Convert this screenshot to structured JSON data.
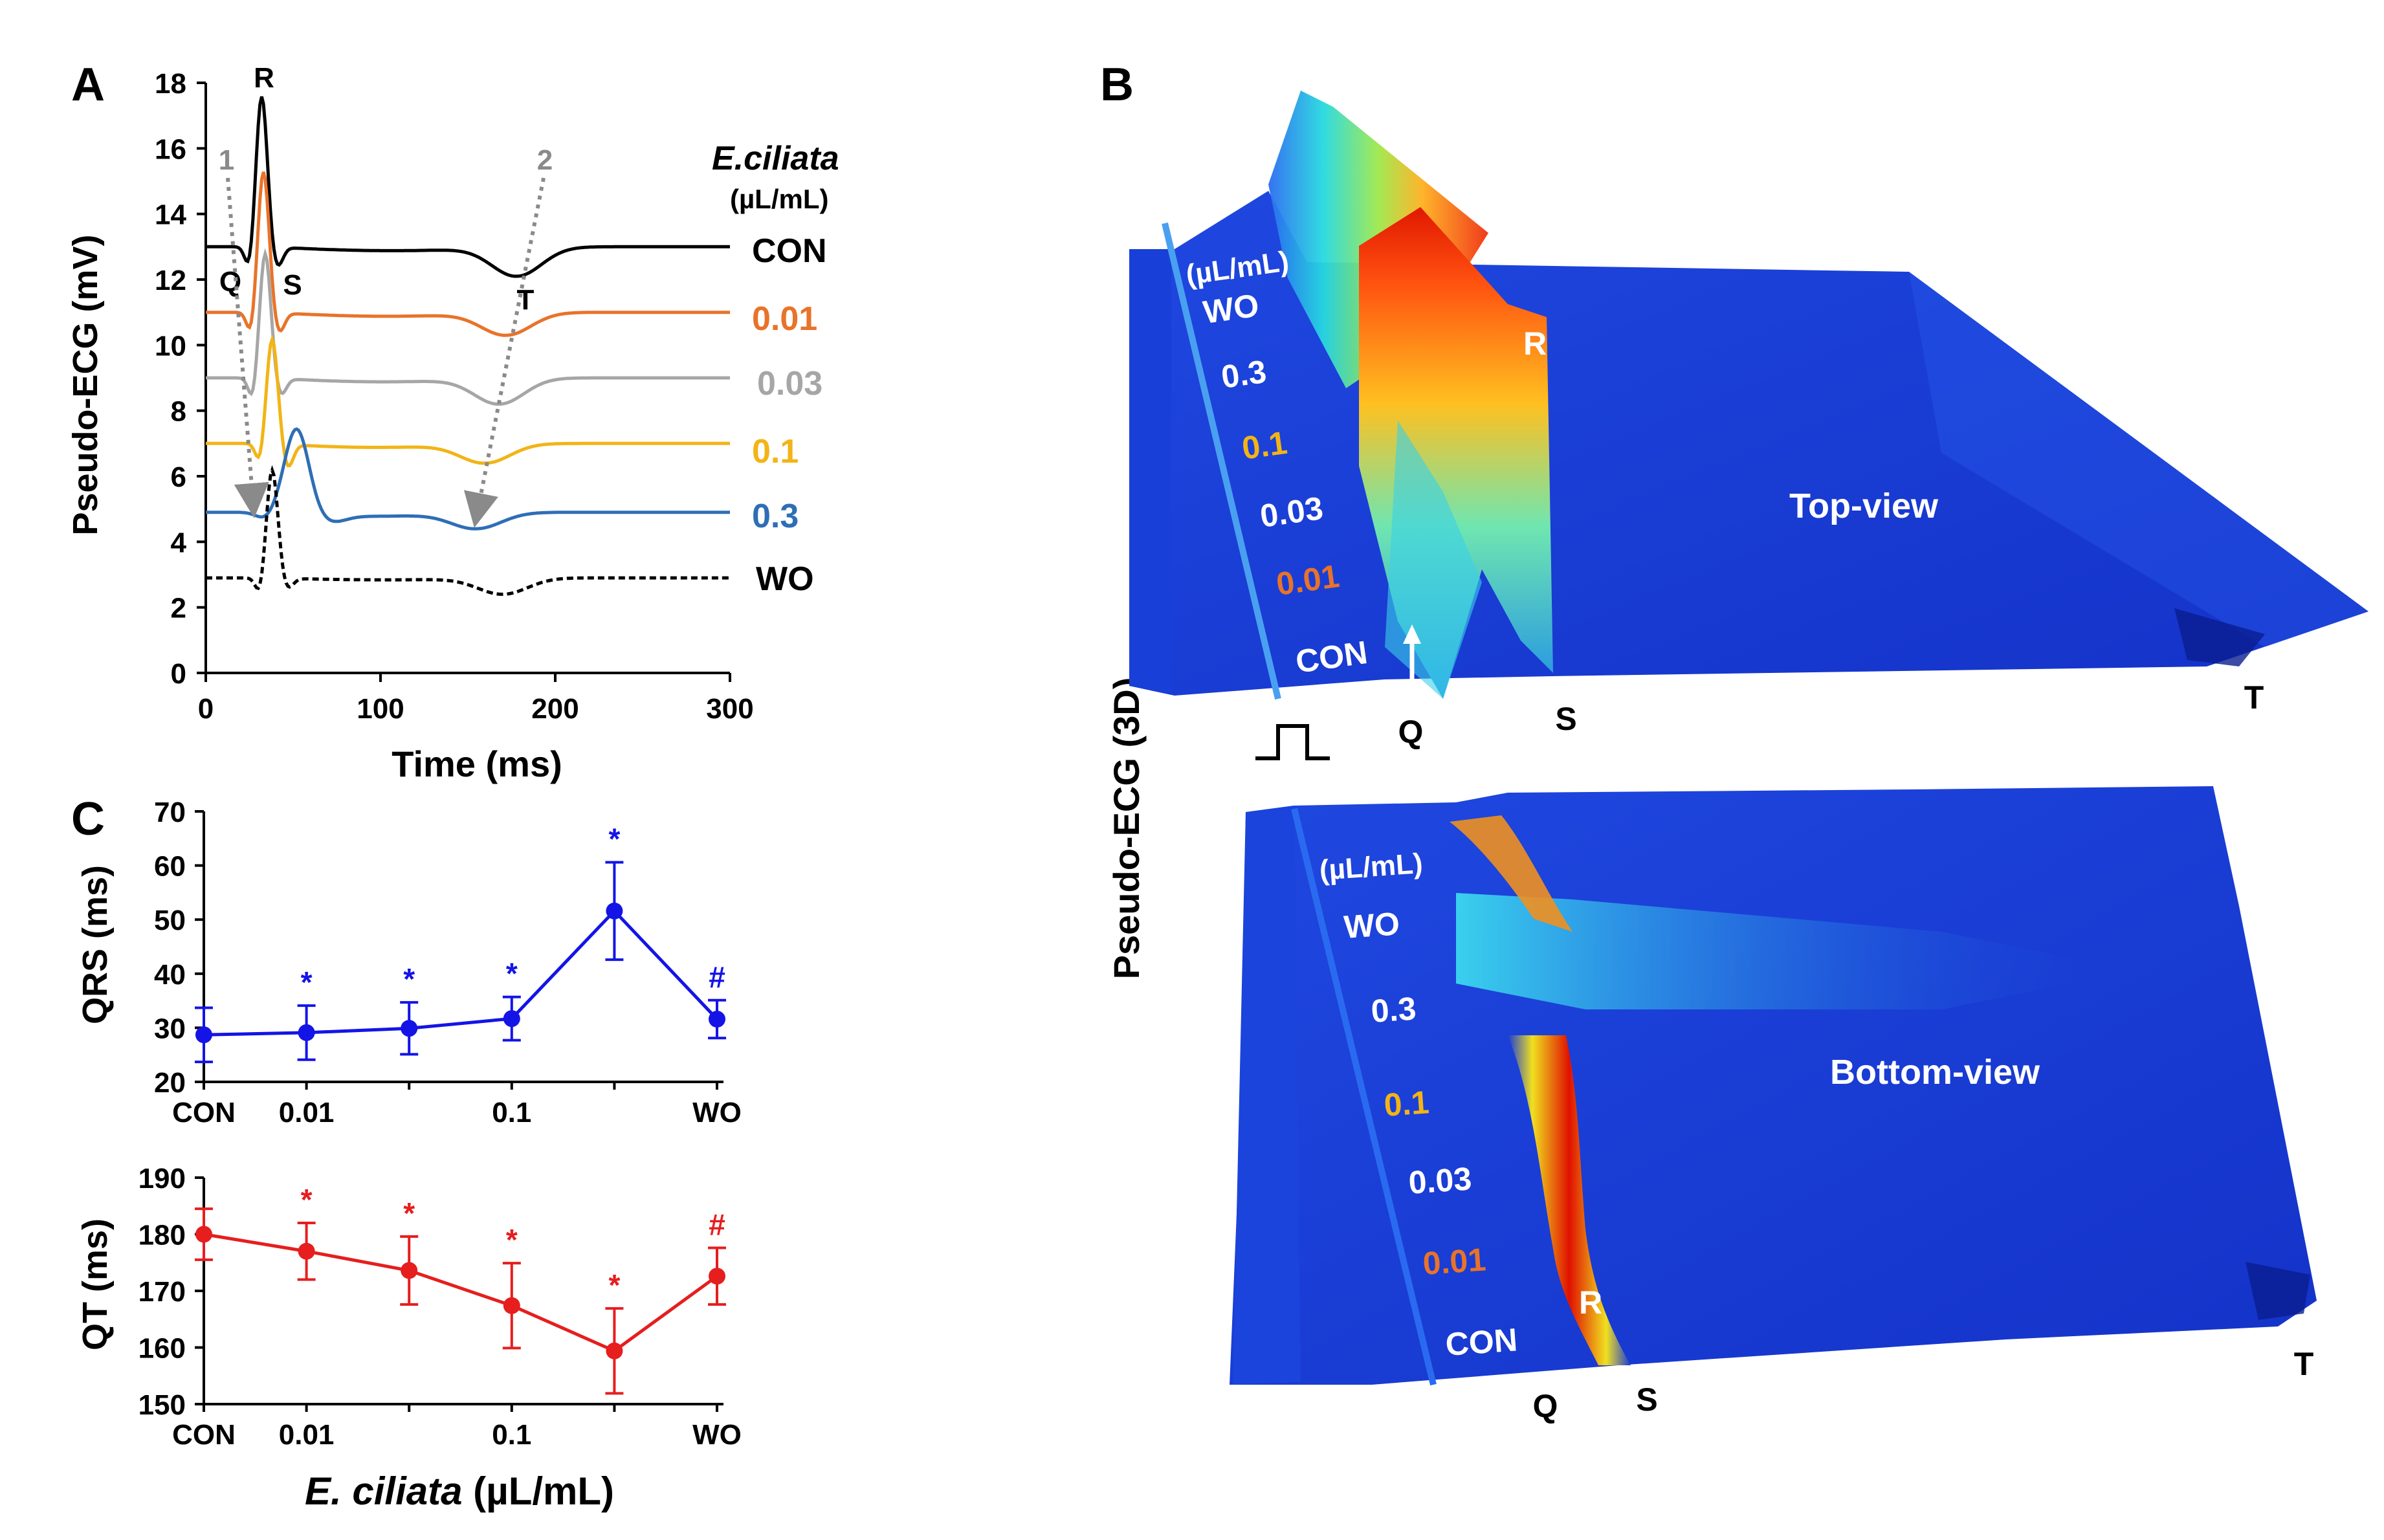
{
  "colors": {
    "CON": "#000000",
    "0.01": "#E8732A",
    "0.03": "#A6A6A6",
    "0.1": "#F2B416",
    "0.3": "#2E6EB5",
    "WO": "#000000",
    "qrs": "#1414E6",
    "qt": "#E61E1E",
    "surface": "#1A3CD8"
  },
  "panel_labels": {
    "a": "A",
    "b": "B",
    "c": "C"
  },
  "legend": {
    "title": "E.ciliata",
    "unit": "(µL/mL)",
    "entries": [
      "CON",
      "0.01",
      "0.03",
      "0.1",
      "0.3",
      "WO"
    ]
  },
  "annotations": {
    "R": "R",
    "Q": "Q",
    "S": "S",
    "T": "T",
    "arrow1": "1",
    "arrow2": "2"
  },
  "panel_b": {
    "ylabel": "Pseudo-ECG (3D)",
    "top_title": "Top-view",
    "bottom_title": "Bottom-view",
    "unit": "(µL/mL)",
    "rows": [
      "WO",
      "0.3",
      "0.1",
      "0.03",
      "0.01",
      "CON"
    ],
    "peak_labels": {
      "R": "R",
      "Q": "Q",
      "S": "S",
      "T": "T"
    }
  },
  "chart_data": [
    {
      "id": "A",
      "type": "line",
      "xlabel": "Time (ms)",
      "ylabel": "Pseudo-ECG (mV)",
      "xlim": [
        0,
        300
      ],
      "ylim": [
        0,
        18
      ],
      "xticks": [
        0,
        100,
        200,
        300
      ],
      "yticks": [
        0,
        2,
        4,
        6,
        8,
        10,
        12,
        14,
        16,
        18
      ],
      "series": [
        {
          "name": "CON",
          "baseline": 13.0,
          "q": 12.3,
          "r": 17.6,
          "s": 12.4,
          "rtime": 32,
          "t": 12.1,
          "ttime": 178,
          "dashed": false
        },
        {
          "name": "0.01",
          "baseline": 11.0,
          "q": 10.3,
          "r": 15.3,
          "s": 10.4,
          "rtime": 33,
          "t": 10.3,
          "ttime": 172,
          "dashed": false
        },
        {
          "name": "0.03",
          "baseline": 9.0,
          "q": 8.3,
          "r": 12.8,
          "s": 8.5,
          "rtime": 34,
          "t": 8.2,
          "ttime": 168,
          "dashed": false
        },
        {
          "name": "0.1",
          "baseline": 7.0,
          "q": 6.4,
          "r": 10.2,
          "s": 6.3,
          "rtime": 38,
          "t": 6.4,
          "ttime": 160,
          "dashed": false
        },
        {
          "name": "0.3",
          "baseline": 4.9,
          "q": 4.7,
          "r": 7.5,
          "s": 4.7,
          "rtime": 52,
          "t": 4.4,
          "ttime": 155,
          "dashed": false
        },
        {
          "name": "WO",
          "baseline": 2.9,
          "q": 2.4,
          "r": 6.2,
          "s": 2.6,
          "rtime": 38,
          "t": 2.4,
          "ttime": 170,
          "dashed": true
        }
      ]
    },
    {
      "id": "C-QRS",
      "type": "line",
      "ylabel": "QRS (ms)",
      "ylim": [
        20,
        70
      ],
      "yticks": [
        20,
        30,
        40,
        50,
        60,
        70
      ],
      "categories": [
        "CON",
        "0.01",
        "0.03",
        "0.1",
        "0.3",
        "WO"
      ],
      "xticklabels": [
        "CON",
        "0.01",
        "0.1",
        "WO"
      ],
      "values": [
        28.7,
        29.1,
        29.9,
        31.7,
        51.6,
        31.6
      ],
      "errors": [
        5.0,
        5.0,
        4.8,
        4.0,
        9.0,
        3.5
      ],
      "markers": [
        "",
        "*",
        "*",
        "*",
        "*",
        "#"
      ]
    },
    {
      "id": "C-QT",
      "type": "line",
      "ylabel": "QT (ms)",
      "xlabel_italic": "E. ciliata",
      "xlabel_unit": " (µL/mL)",
      "ylim": [
        150,
        190
      ],
      "yticks": [
        150,
        160,
        170,
        180,
        190
      ],
      "categories": [
        "CON",
        "0.01",
        "0.03",
        "0.1",
        "0.3",
        "WO"
      ],
      "xticklabels": [
        "CON",
        "0.01",
        "0.1",
        "WO"
      ],
      "values": [
        180.0,
        177.0,
        173.6,
        167.4,
        159.4,
        172.6
      ],
      "errors": [
        4.5,
        5.0,
        6.0,
        7.5,
        7.5,
        5.0
      ],
      "markers": [
        "",
        "*",
        "*",
        "*",
        "*",
        "#"
      ]
    }
  ]
}
